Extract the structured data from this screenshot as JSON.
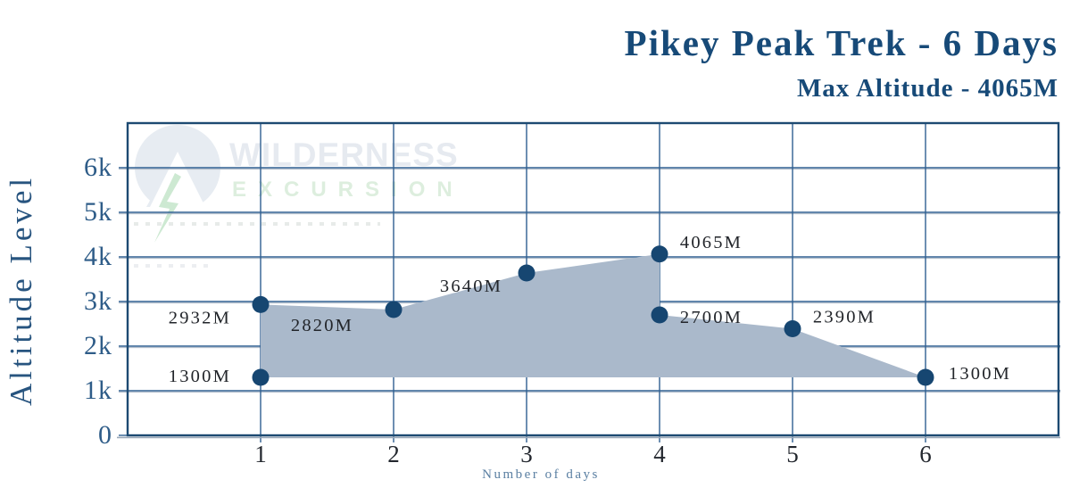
{
  "header": {
    "title": "Pikey Peak Trek - 6 Days",
    "subtitle": "Max Altitude - 4065M"
  },
  "watermark": {
    "logo_icon": "mountain-circle-logo",
    "name": "WILDERNESS",
    "subname": "EXCURSION"
  },
  "chart_data": {
    "type": "area",
    "title": "Pikey Peak Trek - 6 Days",
    "subtitle": "Max Altitude - 4065M",
    "xlabel": "Number of days",
    "ylabel": "Altitude Level",
    "x_ticks": [
      "1",
      "2",
      "3",
      "4",
      "5",
      "6"
    ],
    "y_ticks": [
      "0",
      "1k",
      "2k",
      "3k",
      "4k",
      "5k",
      "6k"
    ],
    "xlim": [
      0,
      7
    ],
    "ylim": [
      0,
      7000
    ],
    "grid": true,
    "legend": false,
    "baseline_altitude": 1300,
    "points": [
      {
        "day": 1,
        "altitude": 1300,
        "label": "1300M"
      },
      {
        "day": 1,
        "altitude": 2932,
        "label": "2932M"
      },
      {
        "day": 2,
        "altitude": 2820,
        "label": "2820M"
      },
      {
        "day": 3,
        "altitude": 3640,
        "label": "3640M"
      },
      {
        "day": 4,
        "altitude": 4065,
        "label": "4065M"
      },
      {
        "day": 4,
        "altitude": 2700,
        "label": "2700M"
      },
      {
        "day": 5,
        "altitude": 2390,
        "label": "2390M"
      },
      {
        "day": 6,
        "altitude": 1300,
        "label": "1300M"
      }
    ],
    "colors": {
      "fill": "#aab9cb",
      "dot": "#164671",
      "grid_line": "#2f5f91",
      "grid_shadow": "#aab6c4",
      "border": "#1d4a72",
      "border_shadow": "#9aa8b8",
      "point_label": "#22252a",
      "title": "#174a78",
      "axis_tick": "#2e5c88",
      "day_tick": "#23272e",
      "xlabel_text": "#5a7fa2"
    }
  }
}
